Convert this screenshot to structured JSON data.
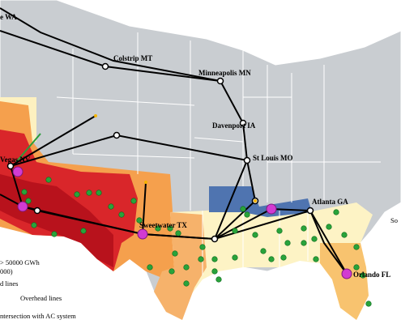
{
  "map": {
    "cities": [
      "e WA",
      "Colstrip MT",
      "Minneapolis MN",
      "Davenport IA",
      "St Louis MO",
      "Vegas NV",
      "Atlanta GA",
      "Sweetwater TX",
      "Orlando FL"
    ],
    "edge_text": "So",
    "legend": {
      "items": [
        "> 50000 GWh",
        "000)",
        "d lines",
        "Overhead lines",
        "ntersection with AC system"
      ]
    }
  }
}
